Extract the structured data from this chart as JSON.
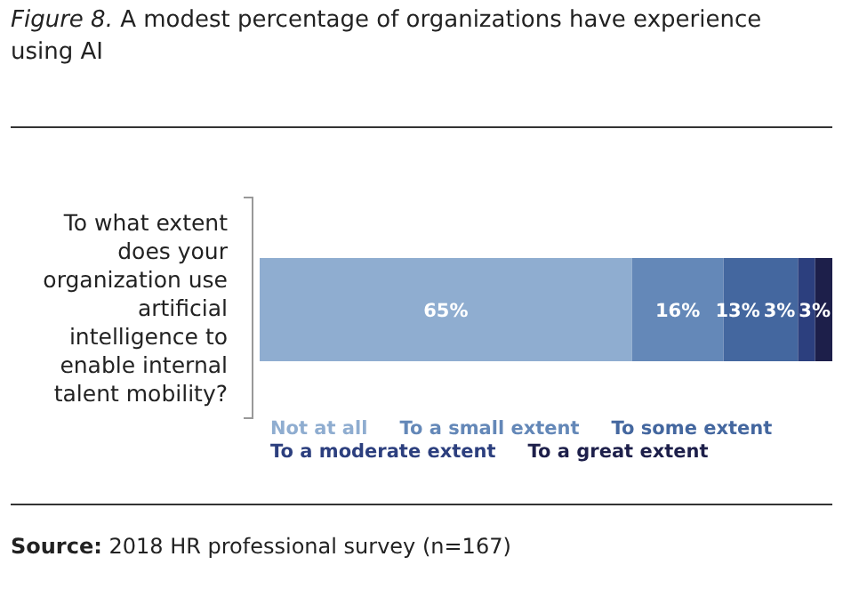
{
  "chart_data": {
    "type": "bar",
    "orientation": "horizontal",
    "stacked": true,
    "title": "Figure 8. A modest percentage of organizations have experience using AI",
    "categories": [
      "To what extent does your organization use artificial intelligence to enable internal talent mobility?"
    ],
    "series": [
      {
        "name": "Not at all",
        "color": "#8fadd0",
        "values": [
          65
        ],
        "value_labels": [
          "65%"
        ]
      },
      {
        "name": "To a small extent",
        "color": "#6488b8",
        "values": [
          16
        ],
        "value_labels": [
          "16%"
        ]
      },
      {
        "name": "To some extent",
        "color": "#44679f",
        "values": [
          13
        ],
        "value_labels": [
          "13%"
        ]
      },
      {
        "name": "To a moderate extent",
        "color": "#2c3f7e",
        "values": [
          3
        ],
        "value_labels": [
          "3%"
        ]
      },
      {
        "name": "To a great extent",
        "color": "#1d1f4a",
        "values": [
          3
        ],
        "value_labels": [
          "3%"
        ]
      }
    ],
    "legend": "bottom",
    "annotations": [
      "Source: 2018 HR professional survey (n=167)"
    ]
  }
}
